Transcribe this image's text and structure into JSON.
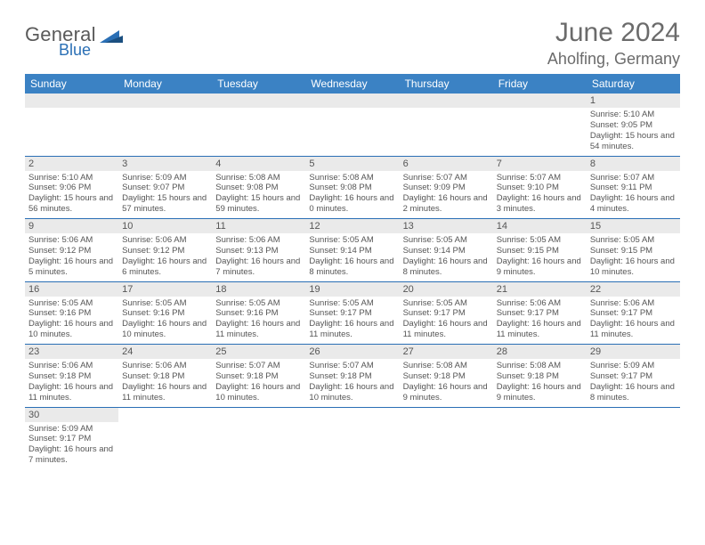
{
  "logo": {
    "general": "General",
    "blue": "Blue"
  },
  "header": {
    "title": "June 2024",
    "location": "Aholfing, Germany"
  },
  "colors": {
    "header_bg": "#3b82c4",
    "header_text": "#ffffff",
    "rule": "#2a6fb5",
    "daynum_bg": "#eaeaea",
    "body_text": "#555555",
    "title_text": "#6b6b6b"
  },
  "dayNames": [
    "Sunday",
    "Monday",
    "Tuesday",
    "Wednesday",
    "Thursday",
    "Friday",
    "Saturday"
  ],
  "weeks": [
    [
      null,
      null,
      null,
      null,
      null,
      null,
      {
        "n": "1",
        "sunrise": "Sunrise: 5:10 AM",
        "sunset": "Sunset: 9:05 PM",
        "daylight": "Daylight: 15 hours and 54 minutes."
      }
    ],
    [
      {
        "n": "2",
        "sunrise": "Sunrise: 5:10 AM",
        "sunset": "Sunset: 9:06 PM",
        "daylight": "Daylight: 15 hours and 56 minutes."
      },
      {
        "n": "3",
        "sunrise": "Sunrise: 5:09 AM",
        "sunset": "Sunset: 9:07 PM",
        "daylight": "Daylight: 15 hours and 57 minutes."
      },
      {
        "n": "4",
        "sunrise": "Sunrise: 5:08 AM",
        "sunset": "Sunset: 9:08 PM",
        "daylight": "Daylight: 15 hours and 59 minutes."
      },
      {
        "n": "5",
        "sunrise": "Sunrise: 5:08 AM",
        "sunset": "Sunset: 9:08 PM",
        "daylight": "Daylight: 16 hours and 0 minutes."
      },
      {
        "n": "6",
        "sunrise": "Sunrise: 5:07 AM",
        "sunset": "Sunset: 9:09 PM",
        "daylight": "Daylight: 16 hours and 2 minutes."
      },
      {
        "n": "7",
        "sunrise": "Sunrise: 5:07 AM",
        "sunset": "Sunset: 9:10 PM",
        "daylight": "Daylight: 16 hours and 3 minutes."
      },
      {
        "n": "8",
        "sunrise": "Sunrise: 5:07 AM",
        "sunset": "Sunset: 9:11 PM",
        "daylight": "Daylight: 16 hours and 4 minutes."
      }
    ],
    [
      {
        "n": "9",
        "sunrise": "Sunrise: 5:06 AM",
        "sunset": "Sunset: 9:12 PM",
        "daylight": "Daylight: 16 hours and 5 minutes."
      },
      {
        "n": "10",
        "sunrise": "Sunrise: 5:06 AM",
        "sunset": "Sunset: 9:12 PM",
        "daylight": "Daylight: 16 hours and 6 minutes."
      },
      {
        "n": "11",
        "sunrise": "Sunrise: 5:06 AM",
        "sunset": "Sunset: 9:13 PM",
        "daylight": "Daylight: 16 hours and 7 minutes."
      },
      {
        "n": "12",
        "sunrise": "Sunrise: 5:05 AM",
        "sunset": "Sunset: 9:14 PM",
        "daylight": "Daylight: 16 hours and 8 minutes."
      },
      {
        "n": "13",
        "sunrise": "Sunrise: 5:05 AM",
        "sunset": "Sunset: 9:14 PM",
        "daylight": "Daylight: 16 hours and 8 minutes."
      },
      {
        "n": "14",
        "sunrise": "Sunrise: 5:05 AM",
        "sunset": "Sunset: 9:15 PM",
        "daylight": "Daylight: 16 hours and 9 minutes."
      },
      {
        "n": "15",
        "sunrise": "Sunrise: 5:05 AM",
        "sunset": "Sunset: 9:15 PM",
        "daylight": "Daylight: 16 hours and 10 minutes."
      }
    ],
    [
      {
        "n": "16",
        "sunrise": "Sunrise: 5:05 AM",
        "sunset": "Sunset: 9:16 PM",
        "daylight": "Daylight: 16 hours and 10 minutes."
      },
      {
        "n": "17",
        "sunrise": "Sunrise: 5:05 AM",
        "sunset": "Sunset: 9:16 PM",
        "daylight": "Daylight: 16 hours and 10 minutes."
      },
      {
        "n": "18",
        "sunrise": "Sunrise: 5:05 AM",
        "sunset": "Sunset: 9:16 PM",
        "daylight": "Daylight: 16 hours and 11 minutes."
      },
      {
        "n": "19",
        "sunrise": "Sunrise: 5:05 AM",
        "sunset": "Sunset: 9:17 PM",
        "daylight": "Daylight: 16 hours and 11 minutes."
      },
      {
        "n": "20",
        "sunrise": "Sunrise: 5:05 AM",
        "sunset": "Sunset: 9:17 PM",
        "daylight": "Daylight: 16 hours and 11 minutes."
      },
      {
        "n": "21",
        "sunrise": "Sunrise: 5:06 AM",
        "sunset": "Sunset: 9:17 PM",
        "daylight": "Daylight: 16 hours and 11 minutes."
      },
      {
        "n": "22",
        "sunrise": "Sunrise: 5:06 AM",
        "sunset": "Sunset: 9:17 PM",
        "daylight": "Daylight: 16 hours and 11 minutes."
      }
    ],
    [
      {
        "n": "23",
        "sunrise": "Sunrise: 5:06 AM",
        "sunset": "Sunset: 9:18 PM",
        "daylight": "Daylight: 16 hours and 11 minutes."
      },
      {
        "n": "24",
        "sunrise": "Sunrise: 5:06 AM",
        "sunset": "Sunset: 9:18 PM",
        "daylight": "Daylight: 16 hours and 11 minutes."
      },
      {
        "n": "25",
        "sunrise": "Sunrise: 5:07 AM",
        "sunset": "Sunset: 9:18 PM",
        "daylight": "Daylight: 16 hours and 10 minutes."
      },
      {
        "n": "26",
        "sunrise": "Sunrise: 5:07 AM",
        "sunset": "Sunset: 9:18 PM",
        "daylight": "Daylight: 16 hours and 10 minutes."
      },
      {
        "n": "27",
        "sunrise": "Sunrise: 5:08 AM",
        "sunset": "Sunset: 9:18 PM",
        "daylight": "Daylight: 16 hours and 9 minutes."
      },
      {
        "n": "28",
        "sunrise": "Sunrise: 5:08 AM",
        "sunset": "Sunset: 9:18 PM",
        "daylight": "Daylight: 16 hours and 9 minutes."
      },
      {
        "n": "29",
        "sunrise": "Sunrise: 5:09 AM",
        "sunset": "Sunset: 9:17 PM",
        "daylight": "Daylight: 16 hours and 8 minutes."
      }
    ],
    [
      {
        "n": "30",
        "sunrise": "Sunrise: 5:09 AM",
        "sunset": "Sunset: 9:17 PM",
        "daylight": "Daylight: 16 hours and 7 minutes."
      },
      null,
      null,
      null,
      null,
      null,
      null
    ]
  ]
}
